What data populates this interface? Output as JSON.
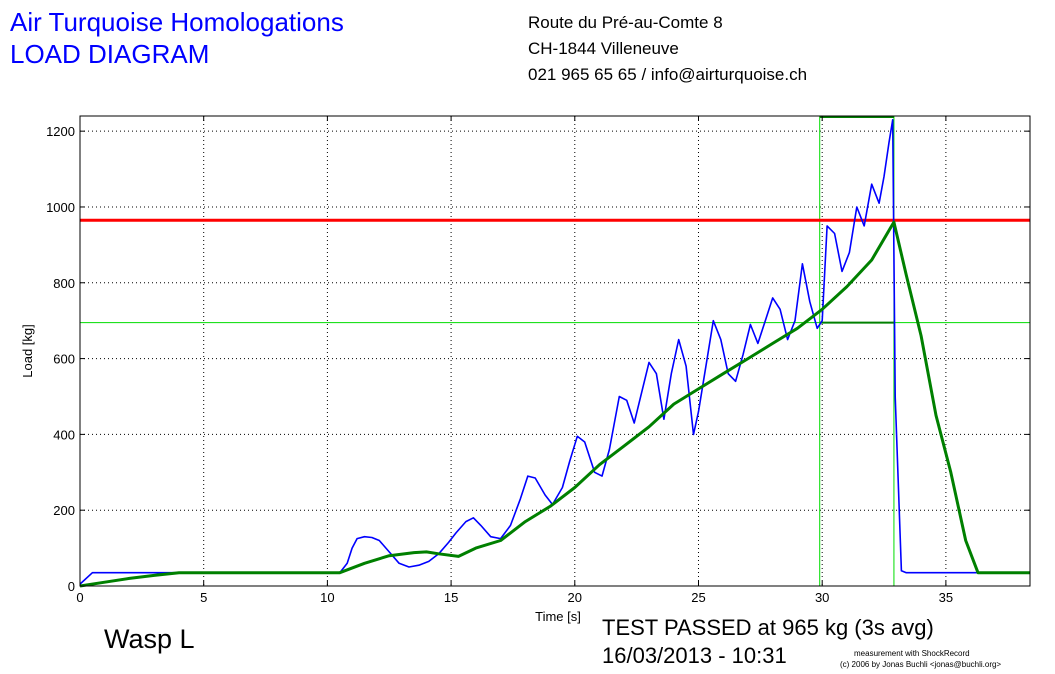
{
  "header": {
    "company": "Air Turquoise Homologations",
    "subtitle": "LOAD DIAGRAM",
    "address_line1": "Route du Pré-au-Comte 8",
    "address_line2": "CH-1844 Villeneuve",
    "address_line3": "021 965 65 65 / info@airturquoise.ch"
  },
  "footer": {
    "product": "Wasp L",
    "result": "TEST PASSED at 965 kg (3s avg)",
    "datetime": "16/03/2013 - 10:31",
    "credit_line1": "measurement with ShockRecord",
    "credit_line2": "(c) 2006 by Jonas Buchli <jonas@buchli.org>"
  },
  "chart_data": {
    "type": "line",
    "xlabel": "Time [s]",
    "ylabel": "Load [kg]",
    "xlim": [
      0,
      38.4
    ],
    "ylim": [
      0,
      1240
    ],
    "xticks": [
      0,
      5,
      10,
      15,
      20,
      25,
      30,
      35
    ],
    "yticks": [
      0,
      200,
      400,
      600,
      800,
      1000,
      1200
    ],
    "grid": true,
    "colors": {
      "raw": "#0000ff",
      "avg": "#008000",
      "limit": "#ff0000",
      "marker": "#00dd00"
    },
    "series": [
      {
        "key": "raw",
        "x": [
          0,
          0.5,
          1,
          2,
          3,
          4,
          5,
          6,
          7,
          8,
          9,
          10,
          10.5,
          10.8,
          11.0,
          11.2,
          11.5,
          11.8,
          12.1,
          12.5,
          12.9,
          13.3,
          13.7,
          14.1,
          14.5,
          14.9,
          15.2,
          15.6,
          15.9,
          16.2,
          16.6,
          17.0,
          17.4,
          17.8,
          18.1,
          18.4,
          18.8,
          19.1,
          19.5,
          19.8,
          20.1,
          20.4,
          20.8,
          21.1,
          21.4,
          21.8,
          22.1,
          22.4,
          22.7,
          23.0,
          23.3,
          23.6,
          23.9,
          24.2,
          24.5,
          24.8,
          25.0,
          25.3,
          25.6,
          25.9,
          26.2,
          26.5,
          26.8,
          27.1,
          27.4,
          27.7,
          28.0,
          28.3,
          28.6,
          28.9,
          29.2,
          29.5,
          29.8,
          30.0,
          30.2,
          30.5,
          30.8,
          31.1,
          31.4,
          31.7,
          32.0,
          32.3,
          32.5,
          32.7,
          32.85,
          32.95,
          33.2,
          33.4,
          34,
          36,
          38.4
        ],
        "y": [
          5,
          35,
          35,
          35,
          35,
          35,
          35,
          35,
          35,
          35,
          35,
          35,
          35,
          60,
          100,
          125,
          130,
          128,
          120,
          90,
          60,
          50,
          55,
          65,
          85,
          115,
          140,
          170,
          180,
          160,
          130,
          125,
          160,
          230,
          290,
          285,
          240,
          215,
          260,
          330,
          395,
          380,
          300,
          290,
          360,
          500,
          490,
          430,
          510,
          590,
          560,
          440,
          560,
          650,
          580,
          400,
          460,
          580,
          700,
          650,
          560,
          540,
          610,
          690,
          640,
          700,
          760,
          730,
          650,
          700,
          850,
          750,
          680,
          700,
          950,
          930,
          830,
          880,
          1000,
          950,
          1060,
          1010,
          1080,
          1170,
          1230,
          500,
          40,
          35,
          35,
          35,
          35
        ]
      },
      {
        "key": "avg",
        "x": [
          0,
          1,
          2,
          3,
          4,
          5,
          6,
          7,
          8,
          9,
          10,
          10.5,
          11.5,
          12.5,
          13.5,
          14.0,
          14.5,
          15.3,
          16.0,
          17.0,
          18.0,
          19.0,
          20.0,
          21.0,
          22.0,
          23.0,
          24.0,
          25.0,
          26.0,
          27.0,
          28.0,
          29.0,
          30.0,
          31.0,
          32.0,
          32.9,
          33.4,
          34.0,
          34.6,
          35.2,
          35.8,
          36.3,
          37.0,
          38.4
        ],
        "y": [
          0,
          10,
          20,
          28,
          35,
          35,
          35,
          35,
          35,
          35,
          35,
          35,
          60,
          80,
          88,
          90,
          85,
          78,
          100,
          120,
          170,
          210,
          260,
          320,
          370,
          420,
          480,
          520,
          560,
          600,
          640,
          680,
          730,
          790,
          860,
          960,
          820,
          660,
          450,
          300,
          120,
          35,
          35,
          35
        ]
      }
    ],
    "hlines": [
      {
        "y": 965,
        "key": "limit"
      },
      {
        "y": 695,
        "key": "marker"
      }
    ],
    "vlines": [
      {
        "x": 29.9,
        "key": "marker"
      },
      {
        "x": 32.9,
        "key": "marker"
      }
    ],
    "window_top_y": 1240,
    "window_avg_y": 695
  }
}
